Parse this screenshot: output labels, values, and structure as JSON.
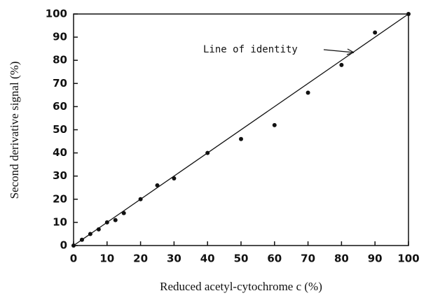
{
  "chart_data": {
    "type": "scatter",
    "xlabel": "Reduced acetyl-cytochrome c (%)",
    "ylabel": "Second derivative signal (%)",
    "annotation": "Line of identity",
    "x": [
      0,
      2.5,
      5,
      7.5,
      10,
      12.5,
      15,
      20,
      25,
      30,
      40,
      50,
      60,
      70,
      80,
      90,
      100
    ],
    "values": [
      0,
      2.5,
      5,
      7,
      10,
      11,
      14,
      20,
      26,
      29,
      40,
      46,
      52,
      66,
      78,
      92,
      100
    ],
    "color": "#111111",
    "identity_line": {
      "x": [
        0,
        100
      ],
      "y": [
        0,
        100
      ]
    },
    "xlim": [
      0,
      100
    ],
    "xticks": [
      0,
      10,
      20,
      30,
      40,
      50,
      60,
      70,
      80,
      90,
      100
    ],
    "ylim": [
      0,
      100
    ],
    "yticks": [
      0,
      10,
      20,
      30,
      40,
      50,
      60,
      70,
      80,
      90,
      100
    ]
  }
}
